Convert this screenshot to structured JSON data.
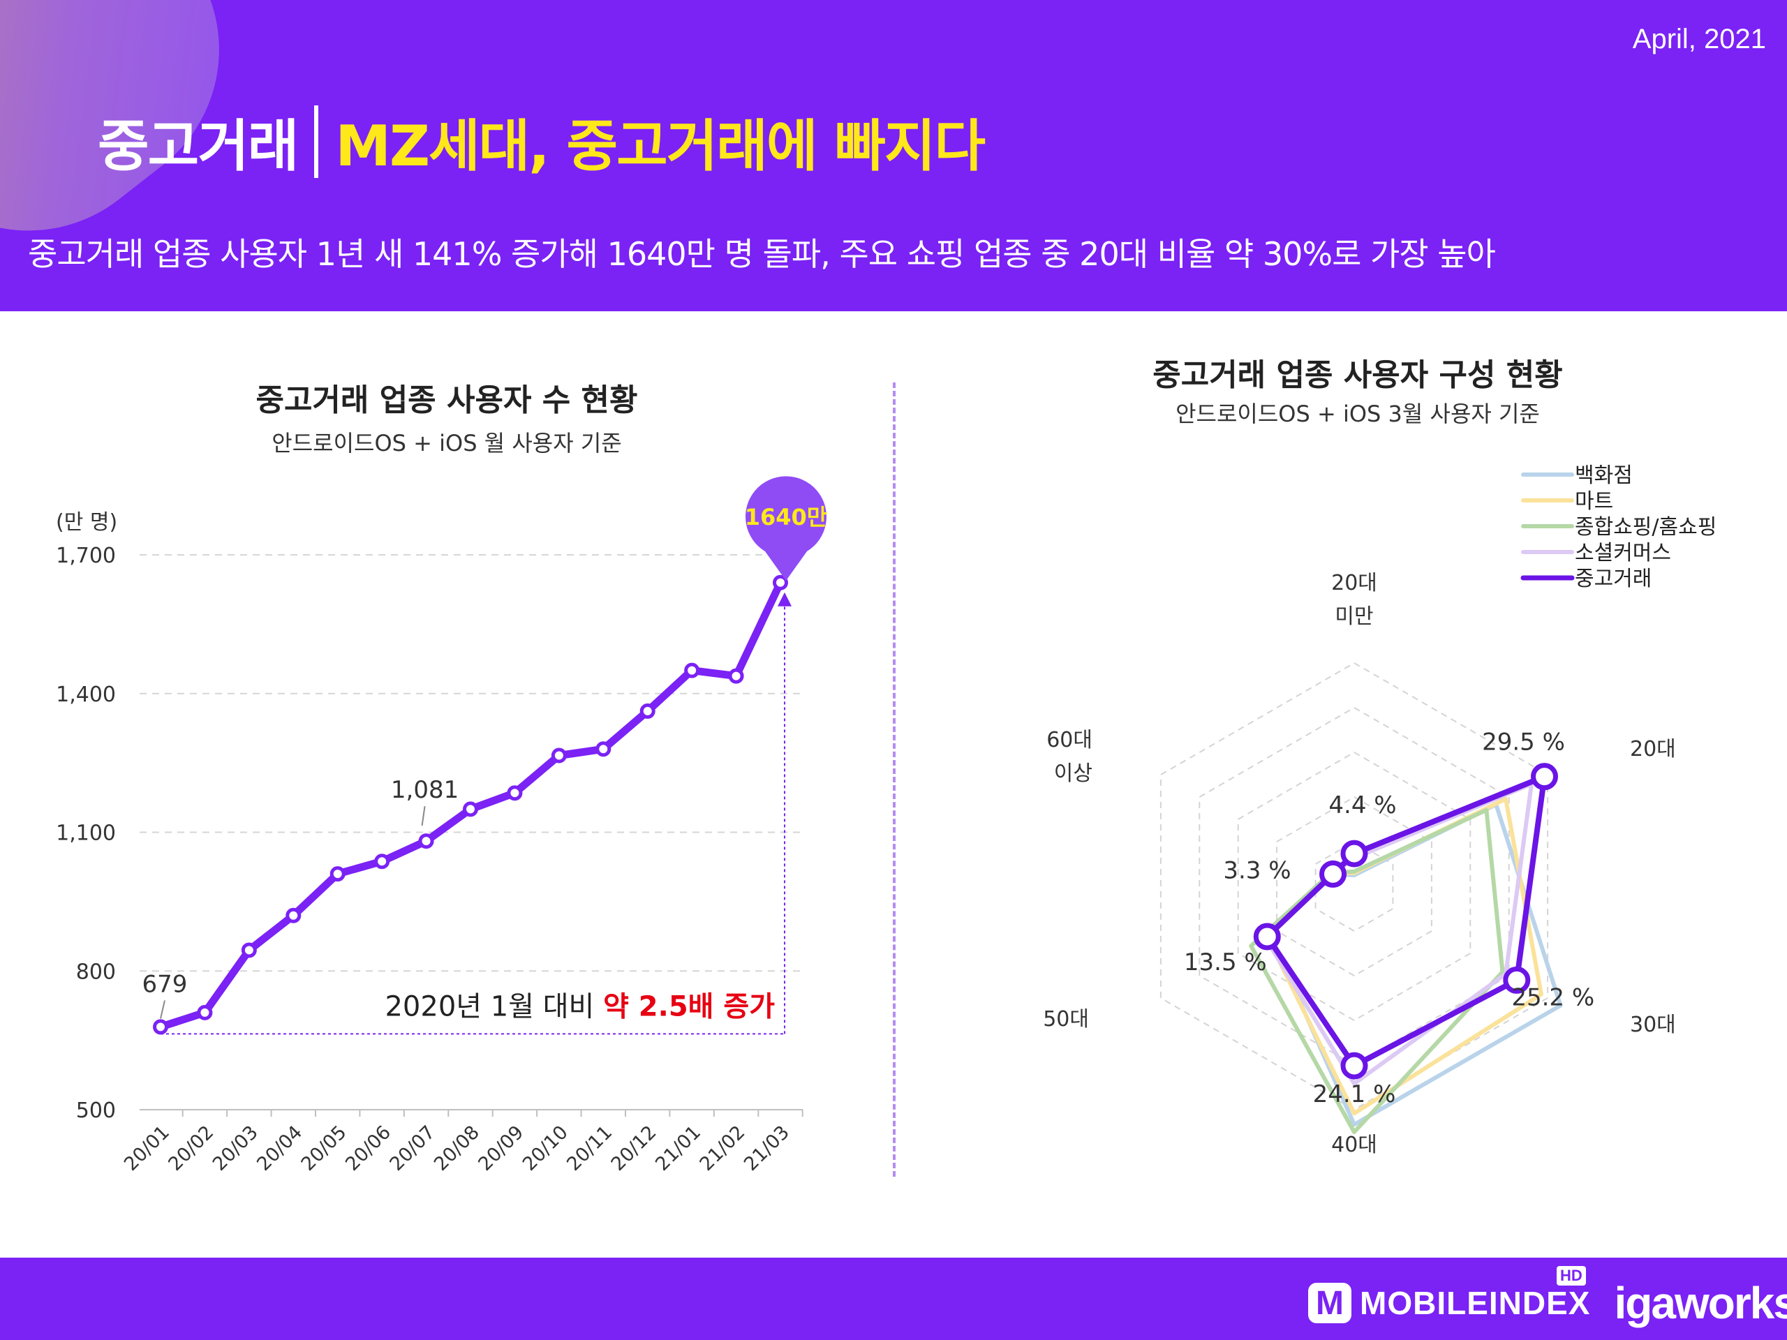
{
  "header": {
    "date": "April, 2021",
    "category": "중고거래",
    "headline": "MZ세대, 중고거래에 빠지다",
    "subtitle": "중고거래 업종 사용자 1년 새 141% 증가해 1640만 명 돌파, 주요 쇼핑 업종 중 20대 비율 약 30%로 가장 높아"
  },
  "chart_data": [
    {
      "type": "line",
      "title": "중고거래 업종 사용자 수 현황",
      "subtitle": "안드로이드OS + iOS 월 사용자 기준",
      "unit_label": "(만 명)",
      "categories": [
        "20/01",
        "20/02",
        "20/03",
        "20/04",
        "20/05",
        "20/06",
        "20/07",
        "20/08",
        "20/09",
        "20/10",
        "20/11",
        "20/12",
        "21/01",
        "21/02",
        "21/03"
      ],
      "series": [
        {
          "values": [
            679,
            710,
            845,
            920,
            1010,
            1037,
            1081,
            1150,
            1185,
            1266,
            1280,
            1362,
            1450,
            1438,
            1640
          ]
        }
      ],
      "ylim": [
        500,
        1700
      ],
      "yticks": [
        500,
        800,
        1100,
        1400,
        1700
      ],
      "ytick_labels": [
        "500",
        "800",
        "1,100",
        "1,400",
        "1,700"
      ],
      "grid": true,
      "annotations": {
        "first": "679",
        "mid": "1,081",
        "peak_bubble": "1640만"
      },
      "callout": {
        "prefix": "2020년 1월 대비 ",
        "highlight": "약 2.5배 증가",
        "highlight_color": "#e60012"
      },
      "line_color": "#7b22f5"
    },
    {
      "type": "radar",
      "title": "중고거래 업종 사용자 구성 현황",
      "subtitle": "안드로이드OS + iOS 3월 사용자 기준",
      "axes": [
        {
          "line1": "20대",
          "line2": "미만"
        },
        {
          "line1": "20대",
          "line2": ""
        },
        {
          "line1": "30대",
          "line2": ""
        },
        {
          "line1": "40대",
          "line2": ""
        },
        {
          "line1": "50대",
          "line2": ""
        },
        {
          "line1": "60대",
          "line2": "이상"
        }
      ],
      "rmax": 30,
      "rings": 5,
      "series": [
        {
          "name": "백화점",
          "color": "#b9d3ea",
          "values": [
            1.5,
            22.0,
            32.0,
            32.0,
            13.0,
            3.3
          ]
        },
        {
          "name": "마트",
          "color": "#fbe29a",
          "values": [
            1.8,
            23.5,
            29.0,
            30.5,
            13.5,
            3.5
          ]
        },
        {
          "name": "종합쇼핑/홈쇼핑",
          "color": "#b5d8a6",
          "values": [
            2.0,
            20.5,
            23.0,
            33.0,
            16.0,
            3.6
          ]
        },
        {
          "name": "소셜커머스",
          "color": "#dcc9f4",
          "values": [
            3.8,
            27.5,
            23.5,
            26.5,
            13.8,
            3.3
          ]
        },
        {
          "name": "중고거래",
          "color": "#6a14e6",
          "values": [
            4.4,
            29.5,
            25.2,
            24.1,
            13.5,
            3.3
          ]
        }
      ],
      "value_labels": [
        "4.4 %",
        "29.5 %",
        "25.2 %",
        "24.1 %",
        "13.5 %",
        "3.3 %"
      ]
    }
  ],
  "footer": {
    "brand": "MOBILEINDEX",
    "badge": "HD",
    "partner": "igaworks"
  },
  "colors": {
    "primary": "#7b22f5",
    "accent": "#ffe81a",
    "grid": "#d9d9d9"
  }
}
